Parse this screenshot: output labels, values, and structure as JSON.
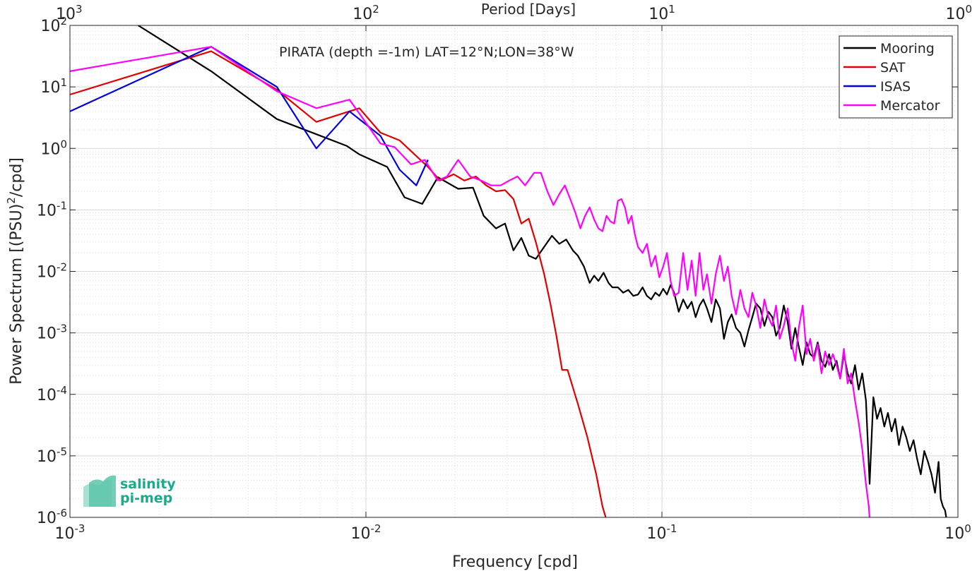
{
  "chart_data": {
    "type": "line",
    "title": "PIRATA (depth =-1m) LAT=12°N;LON=38°W",
    "xlabel": "Frequency [cpd]",
    "ylabel": "Power Spectrum [(PSU)²/cpd]",
    "ylabel_parts": [
      "Power Spectrum [(PSU)",
      "2",
      "/cpd]"
    ],
    "top_xlabel": "Period [Days]",
    "x_scale": "log",
    "y_scale": "log",
    "xlim": [
      0.001,
      1
    ],
    "ylim": [
      1e-06,
      100
    ],
    "grid": true,
    "legend_position": "top-right",
    "x_ticks": [
      {
        "value": 0.001,
        "base": "10",
        "exp": "-3"
      },
      {
        "value": 0.01,
        "base": "10",
        "exp": "-2"
      },
      {
        "value": 0.1,
        "base": "10",
        "exp": "-1"
      },
      {
        "value": 1,
        "base": "10",
        "exp": "0"
      }
    ],
    "y_ticks": [
      {
        "value": 1e-06,
        "base": "10",
        "exp": "-6"
      },
      {
        "value": 1e-05,
        "base": "10",
        "exp": "-5"
      },
      {
        "value": 0.0001,
        "base": "10",
        "exp": "-4"
      },
      {
        "value": 0.001,
        "base": "10",
        "exp": "-3"
      },
      {
        "value": 0.01,
        "base": "10",
        "exp": "-2"
      },
      {
        "value": 0.1,
        "base": "10",
        "exp": "-1"
      },
      {
        "value": 1,
        "base": "10",
        "exp": "0"
      },
      {
        "value": 10,
        "base": "10",
        "exp": "1"
      },
      {
        "value": 100,
        "base": "10",
        "exp": "2"
      }
    ],
    "top_ticks": [
      {
        "period": 1000,
        "base": "10",
        "exp": "3"
      },
      {
        "period": 100,
        "base": "10",
        "exp": "2"
      },
      {
        "period": 10,
        "base": "10",
        "exp": "1"
      },
      {
        "period": 1,
        "base": "10",
        "exp": "0"
      }
    ],
    "series": [
      {
        "name": "Mooring",
        "color": "#000000",
        "points": [
          [
            0.0017,
            100
          ],
          [
            0.003,
            18
          ],
          [
            0.005,
            3
          ],
          [
            0.0068,
            1.7
          ],
          [
            0.0086,
            1.1
          ],
          [
            0.0095,
            0.8
          ],
          [
            0.0118,
            0.5
          ],
          [
            0.0135,
            0.16
          ],
          [
            0.0155,
            0.125
          ],
          [
            0.0175,
            0.34
          ],
          [
            0.0205,
            0.22
          ],
          [
            0.023,
            0.23
          ],
          [
            0.025,
            0.08
          ],
          [
            0.0275,
            0.05
          ],
          [
            0.0295,
            0.06
          ],
          [
            0.0315,
            0.022
          ],
          [
            0.0335,
            0.035
          ],
          [
            0.0355,
            0.018
          ],
          [
            0.0375,
            0.016
          ],
          [
            0.04,
            0.025
          ],
          [
            0.0425,
            0.038
          ],
          [
            0.045,
            0.028
          ],
          [
            0.0475,
            0.033
          ],
          [
            0.05,
            0.022
          ],
          [
            0.052,
            0.018
          ],
          [
            0.0545,
            0.012
          ],
          [
            0.057,
            0.0065
          ],
          [
            0.059,
            0.0085
          ],
          [
            0.061,
            0.007
          ],
          [
            0.0635,
            0.0095
          ],
          [
            0.066,
            0.0065
          ],
          [
            0.068,
            0.0055
          ],
          [
            0.071,
            0.0055
          ],
          [
            0.074,
            0.0045
          ],
          [
            0.077,
            0.005
          ],
          [
            0.08,
            0.004
          ],
          [
            0.083,
            0.0042
          ],
          [
            0.086,
            0.0055
          ],
          [
            0.089,
            0.004
          ],
          [
            0.092,
            0.0035
          ],
          [
            0.095,
            0.0045
          ],
          [
            0.098,
            0.004
          ],
          [
            0.101,
            0.0052
          ],
          [
            0.104,
            0.0042
          ],
          [
            0.107,
            0.006
          ],
          [
            0.11,
            0.0045
          ],
          [
            0.114,
            0.0022
          ],
          [
            0.118,
            0.0035
          ],
          [
            0.122,
            0.0025
          ],
          [
            0.126,
            0.0032
          ],
          [
            0.13,
            0.0018
          ],
          [
            0.134,
            0.0028
          ],
          [
            0.138,
            0.0035
          ],
          [
            0.142,
            0.0025
          ],
          [
            0.147,
            0.0015
          ],
          [
            0.152,
            0.0035
          ],
          [
            0.157,
            0.0025
          ],
          [
            0.162,
            0.0008
          ],
          [
            0.167,
            0.0015
          ],
          [
            0.172,
            0.002
          ],
          [
            0.178,
            0.0012
          ],
          [
            0.184,
            0.001
          ],
          [
            0.19,
            0.0006
          ],
          [
            0.196,
            0.0011
          ],
          [
            0.202,
            0.0018
          ],
          [
            0.208,
            0.003
          ],
          [
            0.215,
            0.0025
          ],
          [
            0.222,
            0.0013
          ],
          [
            0.229,
            0.0022
          ],
          [
            0.236,
            0.0018
          ],
          [
            0.243,
            0.0009
          ],
          [
            0.25,
            0.0012
          ],
          [
            0.258,
            0.0028
          ],
          [
            0.266,
            0.0015
          ],
          [
            0.274,
            0.00055
          ],
          [
            0.282,
            0.0012
          ],
          [
            0.29,
            0.0006
          ],
          [
            0.299,
            0.0003
          ],
          [
            0.308,
            0.0007
          ],
          [
            0.317,
            0.00045
          ],
          [
            0.326,
            0.0004
          ],
          [
            0.336,
            0.0007
          ],
          [
            0.346,
            0.00035
          ],
          [
            0.356,
            0.00028
          ],
          [
            0.367,
            0.00045
          ],
          [
            0.378,
            0.00025
          ],
          [
            0.389,
            0.00035
          ],
          [
            0.4,
            0.00018
          ],
          [
            0.412,
            0.00045
          ],
          [
            0.424,
            0.00022
          ],
          [
            0.436,
            0.00015
          ],
          [
            0.449,
            0.0003
          ],
          [
            0.462,
            0.00012
          ],
          [
            0.475,
            0.00022
          ],
          [
            0.489,
            8e-05
          ],
          [
            0.503,
            3.5e-06
          ],
          [
            0.518,
            9e-05
          ],
          [
            0.533,
            4e-05
          ],
          [
            0.548,
            6e-05
          ],
          [
            0.564,
            3e-05
          ],
          [
            0.58,
            5e-05
          ],
          [
            0.597,
            2.5e-05
          ],
          [
            0.614,
            4e-05
          ],
          [
            0.632,
            1.5e-05
          ],
          [
            0.65,
            3e-05
          ],
          [
            0.669,
            2e-05
          ],
          [
            0.688,
            1.2e-05
          ],
          [
            0.708,
            1.8e-05
          ],
          [
            0.728,
            9e-06
          ],
          [
            0.749,
            5e-06
          ],
          [
            0.77,
            1.2e-05
          ],
          [
            0.792,
            8e-06
          ],
          [
            0.814,
            5e-06
          ],
          [
            0.837,
            2.5e-06
          ],
          [
            0.86,
            8e-06
          ],
          [
            0.875,
            2e-06
          ],
          [
            0.89,
            1.5e-06
          ],
          [
            0.905,
            1.3e-06
          ],
          [
            0.92,
            8e-07
          ]
        ]
      },
      {
        "name": "SAT",
        "color": "#e00000",
        "points": [
          [
            0.001,
            7.5
          ],
          [
            0.003,
            38
          ],
          [
            0.005,
            9
          ],
          [
            0.0068,
            2.7
          ],
          [
            0.0085,
            3.8
          ],
          [
            0.0095,
            4.5
          ],
          [
            0.0112,
            1.8
          ],
          [
            0.013,
            1.35
          ],
          [
            0.0148,
            0.75
          ],
          [
            0.0162,
            0.5
          ],
          [
            0.0178,
            0.3
          ],
          [
            0.0198,
            0.38
          ],
          [
            0.0215,
            0.3
          ],
          [
            0.0235,
            0.35
          ],
          [
            0.0255,
            0.25
          ],
          [
            0.0275,
            0.2
          ],
          [
            0.0295,
            0.21
          ],
          [
            0.0315,
            0.15
          ],
          [
            0.0335,
            0.06
          ],
          [
            0.0355,
            0.072
          ],
          [
            0.0375,
            0.03
          ],
          [
            0.04,
            0.009
          ],
          [
            0.042,
            0.003
          ],
          [
            0.044,
            0.0009
          ],
          [
            0.046,
            0.00025
          ],
          [
            0.048,
            0.00025
          ],
          [
            0.052,
            7e-05
          ],
          [
            0.056,
            2e-05
          ],
          [
            0.06,
            5e-06
          ],
          [
            0.063,
            1.5e-06
          ],
          [
            0.066,
            7e-07
          ]
        ]
      },
      {
        "name": "ISAS",
        "color": "#0000e0",
        "points": [
          [
            0.001,
            4
          ],
          [
            0.003,
            45
          ],
          [
            0.005,
            10
          ],
          [
            0.0068,
            1
          ],
          [
            0.0088,
            4
          ],
          [
            0.0112,
            1.6
          ],
          [
            0.013,
            0.45
          ],
          [
            0.0148,
            0.25
          ],
          [
            0.0162,
            0.65
          ]
        ]
      },
      {
        "name": "Mercator",
        "color": "#ff00ff",
        "points": [
          [
            0.001,
            18
          ],
          [
            0.003,
            45
          ],
          [
            0.005,
            8.5
          ],
          [
            0.0068,
            4.5
          ],
          [
            0.0088,
            6.2
          ],
          [
            0.0098,
            3
          ],
          [
            0.0112,
            1.2
          ],
          [
            0.0125,
            1.05
          ],
          [
            0.0142,
            0.55
          ],
          [
            0.0158,
            0.65
          ],
          [
            0.0175,
            0.3
          ],
          [
            0.0188,
            0.35
          ],
          [
            0.0205,
            0.65
          ],
          [
            0.0225,
            0.35
          ],
          [
            0.0245,
            0.3
          ],
          [
            0.0265,
            0.25
          ],
          [
            0.0285,
            0.25
          ],
          [
            0.0305,
            0.3
          ],
          [
            0.0325,
            0.35
          ],
          [
            0.0345,
            0.25
          ],
          [
            0.037,
            0.4
          ],
          [
            0.039,
            0.4
          ],
          [
            0.041,
            0.2
          ],
          [
            0.043,
            0.12
          ],
          [
            0.045,
            0.18
          ],
          [
            0.047,
            0.25
          ],
          [
            0.049,
            0.15
          ],
          [
            0.051,
            0.09
          ],
          [
            0.053,
            0.05
          ],
          [
            0.055,
            0.08
          ],
          [
            0.057,
            0.11
          ],
          [
            0.059,
            0.07
          ],
          [
            0.061,
            0.05
          ],
          [
            0.063,
            0.045
          ],
          [
            0.065,
            0.08
          ],
          [
            0.067,
            0.065
          ],
          [
            0.069,
            0.06
          ],
          [
            0.071,
            0.14
          ],
          [
            0.073,
            0.15
          ],
          [
            0.075,
            0.11
          ],
          [
            0.077,
            0.06
          ],
          [
            0.079,
            0.08
          ],
          [
            0.081,
            0.04
          ],
          [
            0.083,
            0.025
          ],
          [
            0.086,
            0.02
          ],
          [
            0.089,
            0.028
          ],
          [
            0.092,
            0.012
          ],
          [
            0.095,
            0.018
          ],
          [
            0.098,
            0.008
          ],
          [
            0.101,
            0.012
          ],
          [
            0.104,
            0.02
          ],
          [
            0.107,
            0.007
          ],
          [
            0.11,
            0.004
          ],
          [
            0.114,
            0.0045
          ],
          [
            0.118,
            0.02
          ],
          [
            0.122,
            0.005
          ],
          [
            0.126,
            0.015
          ],
          [
            0.13,
            0.004
          ],
          [
            0.134,
            0.02
          ],
          [
            0.138,
            0.005
          ],
          [
            0.142,
            0.009
          ],
          [
            0.147,
            0.003
          ],
          [
            0.152,
            0.009
          ],
          [
            0.157,
            0.018
          ],
          [
            0.162,
            0.007
          ],
          [
            0.167,
            0.012
          ],
          [
            0.172,
            0.004
          ],
          [
            0.178,
            0.002
          ],
          [
            0.184,
            0.005
          ],
          [
            0.19,
            0.0025
          ],
          [
            0.196,
            0.0018
          ],
          [
            0.202,
            0.0045
          ],
          [
            0.208,
            0.0028
          ],
          [
            0.215,
            0.0012
          ],
          [
            0.222,
            0.0035
          ],
          [
            0.229,
            0.0018
          ],
          [
            0.236,
            0.0013
          ],
          [
            0.243,
            0.0028
          ],
          [
            0.25,
            0.0008
          ],
          [
            0.258,
            0.0013
          ],
          [
            0.266,
            0.0025
          ],
          [
            0.274,
            0.0007
          ],
          [
            0.282,
            0.00035
          ],
          [
            0.29,
            0.0012
          ],
          [
            0.299,
            0.0028
          ],
          [
            0.308,
            0.00045
          ],
          [
            0.317,
            0.0008
          ],
          [
            0.326,
            0.00035
          ],
          [
            0.336,
            0.00065
          ],
          [
            0.346,
            0.00022
          ],
          [
            0.356,
            0.0005
          ],
          [
            0.367,
            0.0003
          ],
          [
            0.378,
            0.00045
          ],
          [
            0.389,
            0.0003
          ],
          [
            0.4,
            0.00018
          ],
          [
            0.412,
            0.00055
          ],
          [
            0.424,
            0.00015
          ],
          [
            0.436,
            0.00022
          ],
          [
            0.449,
            8e-05
          ],
          [
            0.462,
            3.5e-05
          ],
          [
            0.475,
            1.3e-05
          ],
          [
            0.489,
            3.5e-06
          ],
          [
            0.5,
            1.5e-06
          ],
          [
            0.505,
            7e-07
          ]
        ]
      }
    ]
  },
  "logo": {
    "line1": "salinity",
    "line2": "pi-mep",
    "color": "#1aaa8c"
  }
}
